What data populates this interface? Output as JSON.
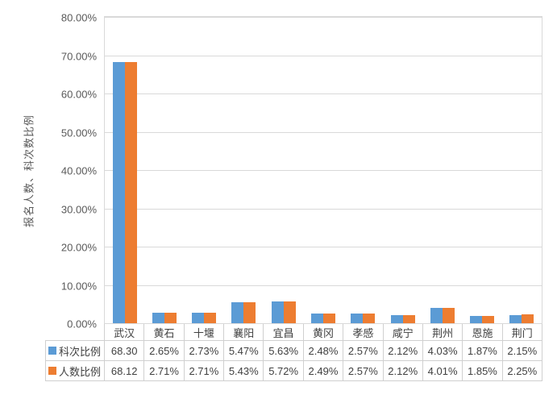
{
  "chart_data": {
    "type": "bar",
    "title": "",
    "ylabel": "报名人数、科次数比例",
    "xlabel": "",
    "ylim": [
      0,
      80
    ],
    "y_tick_step": 10,
    "y_tick_labels": [
      "0.00%",
      "10.00%",
      "20.00%",
      "30.00%",
      "40.00%",
      "50.00%",
      "60.00%",
      "70.00%",
      "80.00%"
    ],
    "grid": true,
    "legend_position": "data-table-left",
    "categories": [
      "武汉",
      "黄石",
      "十堰",
      "襄阳",
      "宜昌",
      "黄冈",
      "孝感",
      "咸宁",
      "荆州",
      "恩施",
      "荆门"
    ],
    "series": [
      {
        "name": "科次比例",
        "color": "#5B9BD5",
        "values": [
          68.3,
          2.65,
          2.73,
          5.47,
          5.63,
          2.48,
          2.57,
          2.12,
          4.03,
          1.87,
          2.15
        ],
        "table_labels": [
          "68.30",
          "2.65%",
          "2.73%",
          "5.47%",
          "5.63%",
          "2.48%",
          "2.57%",
          "2.12%",
          "4.03%",
          "1.87%",
          "2.15%"
        ]
      },
      {
        "name": "人数比例",
        "color": "#ED7D31",
        "values": [
          68.12,
          2.71,
          2.71,
          5.43,
          5.72,
          2.49,
          2.57,
          2.12,
          4.01,
          1.85,
          2.25
        ],
        "table_labels": [
          "68.12",
          "2.71%",
          "2.71%",
          "5.43%",
          "5.72%",
          "2.49%",
          "2.57%",
          "2.12%",
          "4.01%",
          "1.85%",
          "2.25%"
        ]
      }
    ]
  },
  "colors": {
    "series1": "#5B9BD5",
    "series2": "#ED7D31",
    "gridline": "#D9D9D9",
    "table_border": "#D0D0D0",
    "axis_text": "#595959",
    "table_text": "#404040",
    "background": "#FFFFFF"
  }
}
